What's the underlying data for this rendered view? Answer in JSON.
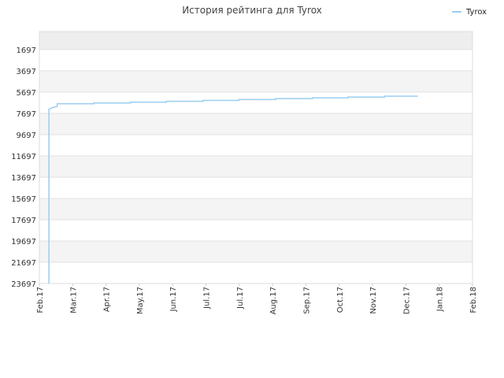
{
  "chart_data": {
    "type": "line",
    "title": "История рейтинга для Tyrox",
    "xlabel": "",
    "ylabel": "",
    "y_inverted": true,
    "ylim": [
      23697,
      0
    ],
    "yticks": [
      1697,
      3697,
      5697,
      7697,
      9697,
      11697,
      13697,
      15697,
      17697,
      19697,
      21697,
      23697
    ],
    "xticks": [
      "Feb.17",
      "Mar.17",
      "Apr.17",
      "May.17",
      "Jun.17",
      "Jul.17",
      "Jul.17",
      "Aug.17",
      "Sep.17",
      "Oct.17",
      "Nov.17",
      "Dec.17",
      "Jan.18",
      "Feb.18"
    ],
    "grid": true,
    "legend_position": "top-right",
    "series": [
      {
        "name": "Tyrox",
        "color": "#9ccdf0",
        "points": [
          {
            "x": "2017-02-09",
            "y": 23697
          },
          {
            "x": "2017-02-09",
            "y": 7300
          },
          {
            "x": "2017-02-12",
            "y": 7150
          },
          {
            "x": "2017-02-16",
            "y": 7050
          },
          {
            "x": "2017-02-16",
            "y": 6800
          },
          {
            "x": "2017-03-19",
            "y": 6800
          },
          {
            "x": "2017-03-19",
            "y": 6720
          },
          {
            "x": "2017-04-19",
            "y": 6720
          },
          {
            "x": "2017-04-19",
            "y": 6640
          },
          {
            "x": "2017-05-19",
            "y": 6640
          },
          {
            "x": "2017-05-19",
            "y": 6560
          },
          {
            "x": "2017-06-19",
            "y": 6560
          },
          {
            "x": "2017-06-19",
            "y": 6480
          },
          {
            "x": "2017-07-19",
            "y": 6480
          },
          {
            "x": "2017-07-19",
            "y": 6400
          },
          {
            "x": "2017-08-19",
            "y": 6400
          },
          {
            "x": "2017-08-19",
            "y": 6320
          },
          {
            "x": "2017-09-19",
            "y": 6320
          },
          {
            "x": "2017-09-19",
            "y": 6240
          },
          {
            "x": "2017-10-19",
            "y": 6240
          },
          {
            "x": "2017-10-19",
            "y": 6160
          },
          {
            "x": "2017-11-19",
            "y": 6160
          },
          {
            "x": "2017-11-19",
            "y": 6080
          },
          {
            "x": "2017-12-17",
            "y": 6080
          }
        ]
      }
    ]
  }
}
